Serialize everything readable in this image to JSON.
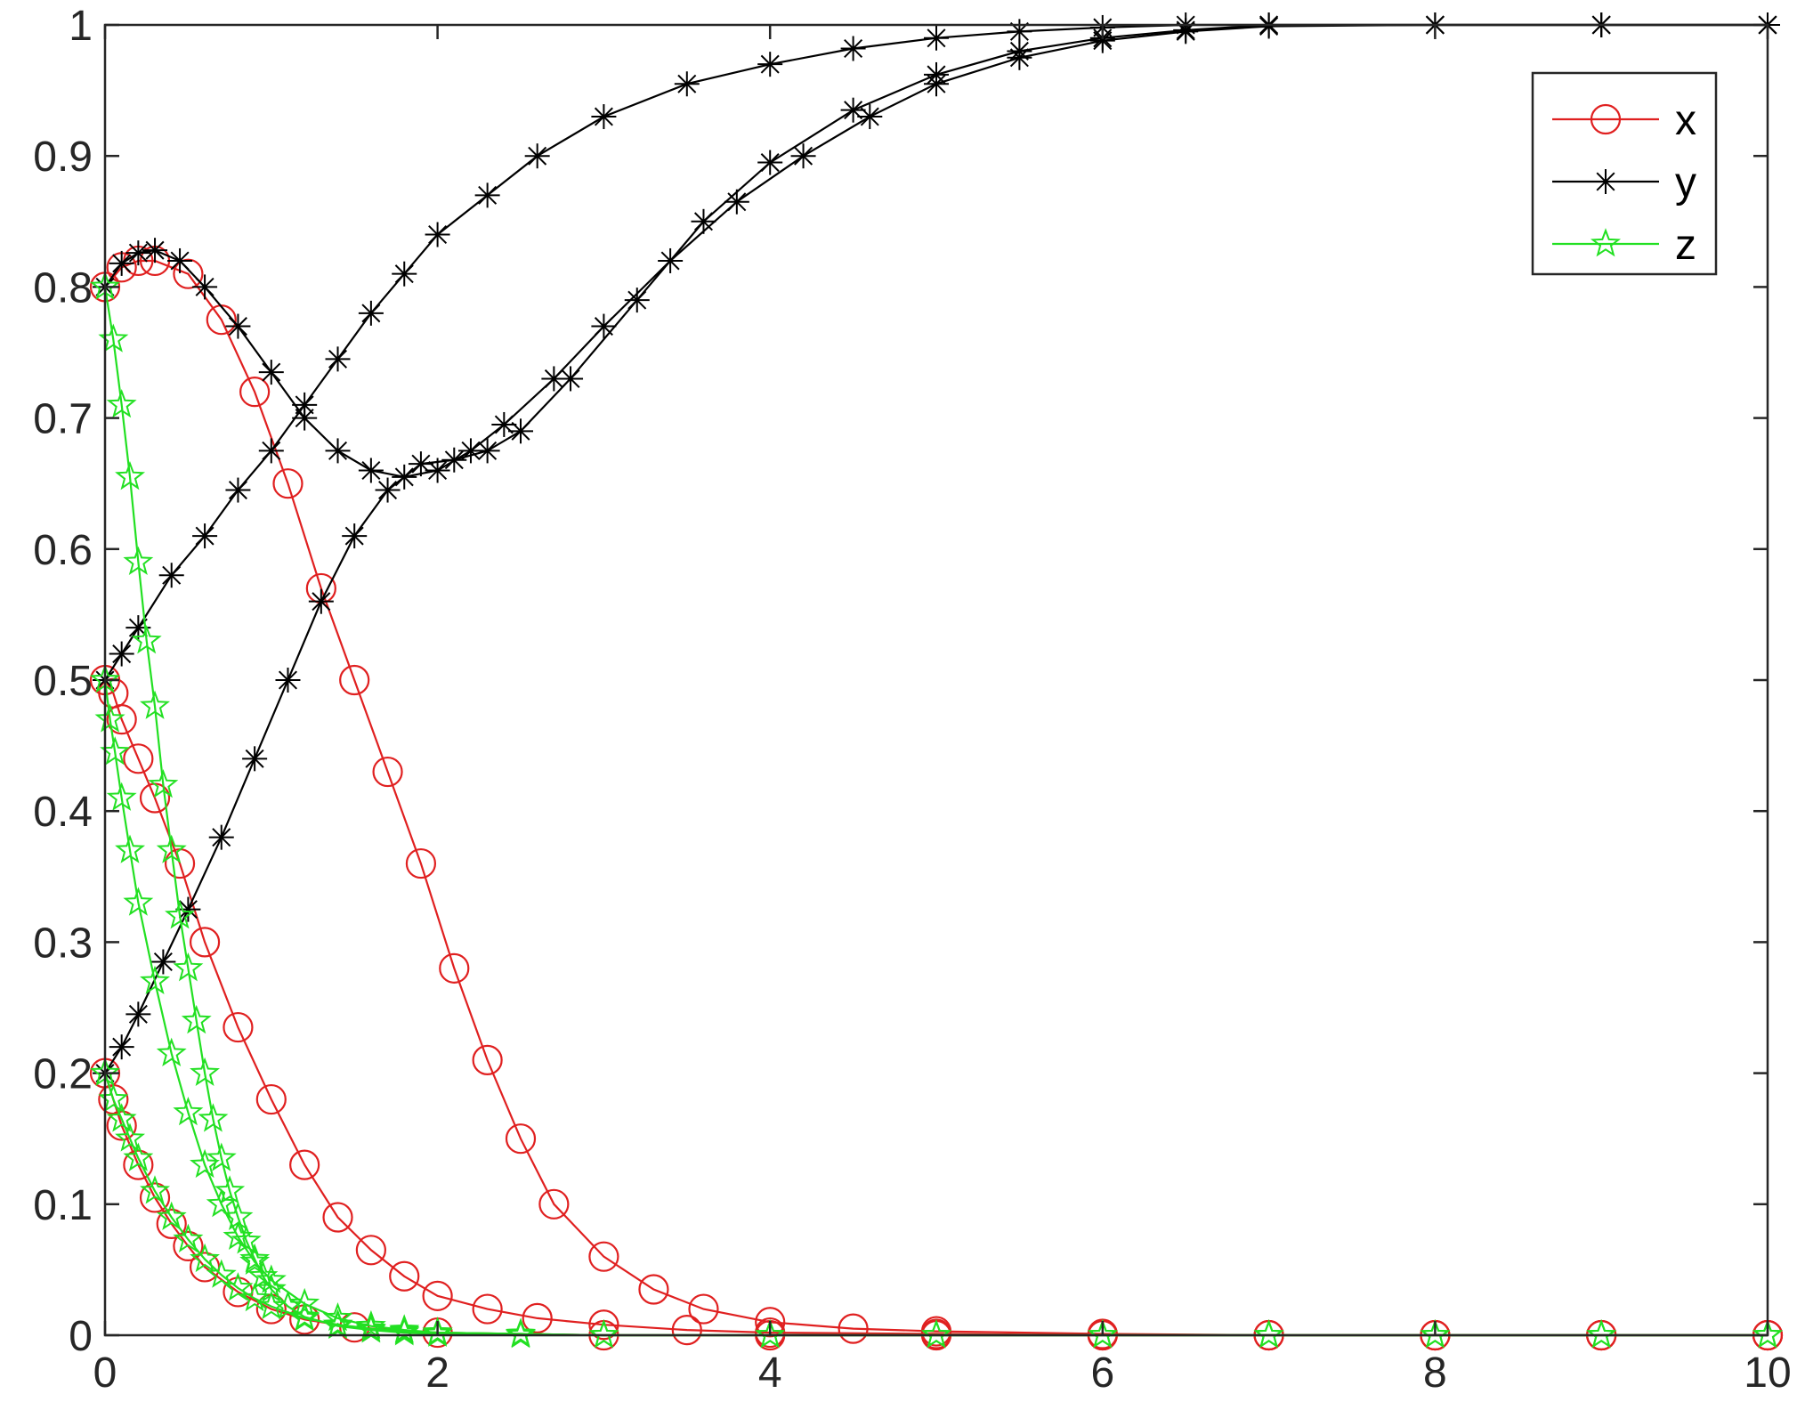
{
  "chart_data": {
    "type": "line",
    "title": "",
    "xlabel": "",
    "ylabel": "",
    "xlim": [
      0,
      10
    ],
    "ylim": [
      0,
      1
    ],
    "xticks": [
      "0",
      "2",
      "4",
      "6",
      "8",
      "10"
    ],
    "yticks": [
      "0",
      "0.1",
      "0.2",
      "0.3",
      "0.4",
      "0.5",
      "0.6",
      "0.7",
      "0.8",
      "0.9",
      "1"
    ],
    "grid": false,
    "legend_position": "top-right",
    "legend": [
      {
        "label": "x",
        "color": "#e02020",
        "marker": "circle"
      },
      {
        "label": "y",
        "color": "#000000",
        "marker": "asterisk"
      },
      {
        "label": "z",
        "color": "#22e022",
        "marker": "star"
      }
    ],
    "series": [
      {
        "name": "x",
        "group": "x",
        "color": "#e02020",
        "marker": "circle",
        "x": [
          0,
          0.1,
          0.2,
          0.3,
          0.5,
          0.7,
          0.9,
          1.1,
          1.3,
          1.5,
          1.7,
          1.9,
          2.1,
          2.3,
          2.5,
          2.7,
          3.0,
          3.3,
          3.6,
          4.0,
          4.5,
          5,
          6,
          7,
          8,
          9,
          10
        ],
        "y": [
          0.8,
          0.815,
          0.82,
          0.82,
          0.81,
          0.775,
          0.72,
          0.65,
          0.57,
          0.5,
          0.43,
          0.36,
          0.28,
          0.21,
          0.15,
          0.1,
          0.06,
          0.035,
          0.02,
          0.01,
          0.005,
          0.003,
          0.001,
          0,
          0,
          0,
          0
        ]
      },
      {
        "name": "x",
        "group": "x",
        "color": "#e02020",
        "marker": "circle",
        "x": [
          0,
          0.05,
          0.1,
          0.2,
          0.3,
          0.45,
          0.6,
          0.8,
          1.0,
          1.2,
          1.4,
          1.6,
          1.8,
          2.0,
          2.3,
          2.6,
          3.0,
          3.5,
          4,
          5,
          6,
          7,
          8,
          9,
          10
        ],
        "y": [
          0.5,
          0.49,
          0.47,
          0.44,
          0.41,
          0.36,
          0.3,
          0.235,
          0.18,
          0.13,
          0.09,
          0.065,
          0.045,
          0.03,
          0.02,
          0.013,
          0.008,
          0.004,
          0.002,
          0.001,
          0,
          0,
          0,
          0,
          0
        ]
      },
      {
        "name": "x",
        "group": "x",
        "color": "#e02020",
        "marker": "circle",
        "x": [
          0,
          0.05,
          0.1,
          0.2,
          0.3,
          0.4,
          0.5,
          0.6,
          0.8,
          1.0,
          1.2,
          1.5,
          2.0,
          3,
          4,
          5,
          6,
          7,
          8,
          9,
          10
        ],
        "y": [
          0.2,
          0.18,
          0.16,
          0.13,
          0.105,
          0.085,
          0.068,
          0.052,
          0.033,
          0.02,
          0.012,
          0.006,
          0.002,
          0,
          0,
          0,
          0,
          0,
          0,
          0,
          0
        ]
      },
      {
        "name": "y",
        "group": "y",
        "color": "#000000",
        "marker": "asterisk",
        "x": [
          0,
          0.1,
          0.2,
          0.3,
          0.45,
          0.6,
          0.8,
          1.0,
          1.2,
          1.4,
          1.6,
          1.8,
          2.0,
          2.2,
          2.4,
          2.7,
          3.0,
          3.4,
          3.8,
          4.2,
          4.6,
          5.0,
          5.5,
          6.0,
          6.5,
          7,
          8,
          9,
          10
        ],
        "y": [
          0.8,
          0.818,
          0.826,
          0.828,
          0.82,
          0.8,
          0.77,
          0.735,
          0.7,
          0.675,
          0.66,
          0.655,
          0.66,
          0.675,
          0.695,
          0.73,
          0.77,
          0.82,
          0.865,
          0.9,
          0.93,
          0.955,
          0.975,
          0.988,
          0.995,
          0.999,
          1,
          1,
          1
        ]
      },
      {
        "name": "y",
        "group": "y",
        "color": "#000000",
        "marker": "asterisk",
        "x": [
          0,
          0.1,
          0.2,
          0.4,
          0.6,
          0.8,
          1.0,
          1.2,
          1.4,
          1.6,
          1.8,
          2.0,
          2.3,
          2.6,
          3.0,
          3.5,
          4.0,
          4.5,
          5.0,
          5.5,
          6.0,
          6.5,
          7,
          8,
          9,
          10
        ],
        "y": [
          0.5,
          0.52,
          0.54,
          0.58,
          0.61,
          0.645,
          0.675,
          0.71,
          0.745,
          0.78,
          0.81,
          0.84,
          0.87,
          0.9,
          0.93,
          0.955,
          0.97,
          0.982,
          0.99,
          0.995,
          0.998,
          1,
          1,
          1,
          1,
          1
        ]
      },
      {
        "name": "y",
        "group": "y",
        "color": "#000000",
        "marker": "asterisk",
        "x": [
          0,
          0.1,
          0.2,
          0.35,
          0.5,
          0.7,
          0.9,
          1.1,
          1.3,
          1.5,
          1.7,
          1.9,
          2.1,
          2.3,
          2.5,
          2.8,
          3.2,
          3.6,
          4.0,
          4.5,
          5.0,
          5.5,
          6.0,
          6.5,
          7,
          8,
          9,
          10
        ],
        "y": [
          0.2,
          0.22,
          0.245,
          0.285,
          0.325,
          0.38,
          0.44,
          0.5,
          0.56,
          0.61,
          0.645,
          0.665,
          0.668,
          0.675,
          0.69,
          0.73,
          0.79,
          0.85,
          0.895,
          0.935,
          0.962,
          0.98,
          0.99,
          0.996,
          1,
          1,
          1,
          1
        ]
      },
      {
        "name": "z",
        "group": "z",
        "color": "#22e022",
        "marker": "star",
        "x": [
          0,
          0.05,
          0.1,
          0.15,
          0.2,
          0.25,
          0.3,
          0.35,
          0.4,
          0.45,
          0.5,
          0.55,
          0.6,
          0.65,
          0.7,
          0.75,
          0.8,
          0.85,
          0.9,
          0.95,
          1.0,
          1.1,
          1.2,
          1.4,
          1.6,
          1.8,
          2.0,
          2.5,
          3,
          4,
          5,
          6,
          7,
          8,
          9,
          10
        ],
        "y": [
          0.8,
          0.76,
          0.71,
          0.655,
          0.59,
          0.53,
          0.48,
          0.42,
          0.37,
          0.32,
          0.28,
          0.24,
          0.2,
          0.165,
          0.135,
          0.11,
          0.09,
          0.072,
          0.058,
          0.045,
          0.035,
          0.022,
          0.014,
          0.007,
          0.004,
          0.002,
          0.001,
          0,
          0,
          0,
          0,
          0,
          0,
          0,
          0,
          0
        ]
      },
      {
        "name": "z",
        "group": "z",
        "color": "#22e022",
        "marker": "star",
        "x": [
          0,
          0.03,
          0.06,
          0.1,
          0.15,
          0.2,
          0.3,
          0.4,
          0.5,
          0.6,
          0.7,
          0.8,
          0.9,
          1.0,
          1.2,
          1.4,
          1.6,
          1.8,
          2.0,
          2.5,
          3,
          4,
          5,
          6,
          7,
          8,
          9,
          10
        ],
        "y": [
          0.5,
          0.47,
          0.445,
          0.41,
          0.37,
          0.33,
          0.27,
          0.215,
          0.17,
          0.13,
          0.1,
          0.075,
          0.056,
          0.042,
          0.024,
          0.013,
          0.007,
          0.004,
          0.002,
          0.001,
          0,
          0,
          0,
          0,
          0,
          0,
          0,
          0
        ]
      },
      {
        "name": "z",
        "group": "z",
        "color": "#22e022",
        "marker": "star",
        "x": [
          0,
          0.05,
          0.1,
          0.15,
          0.2,
          0.3,
          0.4,
          0.5,
          0.6,
          0.7,
          0.8,
          0.9,
          1.0,
          1.2,
          1.4,
          1.6,
          1.8,
          2.0,
          2.5,
          3,
          4,
          5,
          6,
          7,
          8,
          9,
          10
        ],
        "y": [
          0.2,
          0.18,
          0.165,
          0.15,
          0.135,
          0.11,
          0.09,
          0.073,
          0.058,
          0.046,
          0.036,
          0.028,
          0.022,
          0.013,
          0.008,
          0.005,
          0.003,
          0.002,
          0.001,
          0,
          0,
          0,
          0,
          0,
          0,
          0,
          0
        ]
      }
    ]
  }
}
